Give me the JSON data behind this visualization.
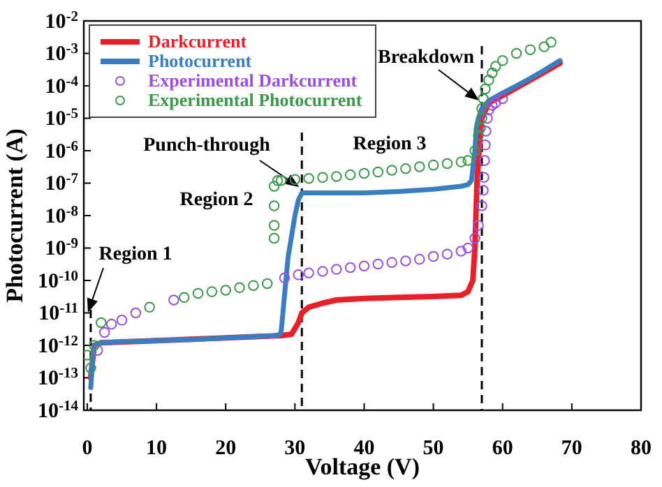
{
  "chart_data": {
    "type": "line",
    "xlabel": "Voltage (V)",
    "ylabel": "Photocurrent (A)",
    "log": "y",
    "xlim": [
      -0.5,
      80
    ],
    "xticks": [
      0,
      10,
      20,
      30,
      40,
      50,
      60,
      70,
      80
    ],
    "ylim": [
      1e-14,
      0.01
    ],
    "yticks": [
      {
        "value": 1e-14,
        "label": "10$^{-14}$"
      },
      {
        "value": 1e-13,
        "label": "10$^{-13}$"
      },
      {
        "value": 1e-12,
        "label": "10$^{-12}$"
      },
      {
        "value": 1e-11,
        "label": "10$^{-11}$"
      },
      {
        "value": 1e-10,
        "label": "10$^{-10}$"
      },
      {
        "value": 1e-09,
        "label": "10$^{-9}$"
      },
      {
        "value": 1e-08,
        "label": "10$^{-8}$"
      },
      {
        "value": 1e-07,
        "label": "10$^{-7}$"
      },
      {
        "value": 1e-06,
        "label": "10$^{-6}$"
      },
      {
        "value": 1e-05,
        "label": "10$^{-5}$"
      },
      {
        "value": 0.0001,
        "label": "10$^{-4}$"
      },
      {
        "value": 0.001,
        "label": "10$^{-3}$"
      },
      {
        "value": 0.01,
        "label": "10$^{-2}$"
      }
    ],
    "legend": "top left",
    "grid": false,
    "series": [
      {
        "name": "Darkcurrent",
        "color": "#e8202a",
        "marker": "none",
        "line_style": "solid",
        "x": [
          0.5,
          1,
          2,
          10,
          20,
          28,
          29.5,
          30.5,
          31,
          32,
          34,
          36,
          40,
          45,
          50,
          54,
          55,
          55.7,
          56,
          56.3,
          56.6,
          57,
          58,
          60,
          64,
          68.3
        ],
        "values": [
          1e-13,
          1e-12,
          1.2e-12,
          1.4e-12,
          1.7e-12,
          2e-12,
          2.2e-12,
          5e-12,
          1e-11,
          1.5e-11,
          2e-11,
          2.5e-11,
          2.8e-11,
          3e-11,
          3.2e-11,
          3.5e-11,
          4.5e-11,
          1e-10,
          1e-09,
          1e-07,
          1e-06,
          1e-05,
          3e-05,
          5e-05,
          0.00015,
          0.0005
        ]
      },
      {
        "name": "Photocurrent",
        "color": "#3a7dc0",
        "marker": "none",
        "line_style": "solid",
        "x": [
          0.5,
          0.6,
          0.8,
          1,
          2,
          5,
          10,
          15,
          20,
          25,
          27.5,
          28,
          29,
          30,
          30.5,
          31,
          35,
          40,
          45,
          50,
          54,
          55,
          55.5,
          56,
          56.2,
          56.5,
          57,
          58,
          60,
          62,
          64,
          66,
          68.3
        ],
        "values": [
          5e-14,
          1e-13,
          5e-13,
          1e-12,
          1.2e-12,
          1.3e-12,
          1.4e-12,
          1.5e-12,
          1.7e-12,
          1.9e-12,
          2e-12,
          2.5e-12,
          5e-10,
          1e-08,
          3e-08,
          5e-08,
          5e-08,
          5e-08,
          5.5e-08,
          6.5e-08,
          8e-08,
          9e-08,
          1.2e-07,
          1e-06,
          5e-06,
          1e-05,
          2e-05,
          3.5e-05,
          6e-05,
          0.0001,
          0.00017,
          0.0003,
          0.0006
        ]
      },
      {
        "name": "Experimental Darkcurrent",
        "type": "scatter",
        "color": "#9b4fe0",
        "marker": "circle",
        "x": [
          1.5,
          2.5,
          3.5,
          5,
          7,
          12.5,
          28.5,
          30.5,
          32,
          34,
          36,
          38,
          40,
          42,
          44,
          46,
          48,
          50,
          52,
          54,
          55,
          56,
          56.5,
          57,
          57.2,
          57.3,
          57.4,
          57.5,
          57.6,
          57.8,
          58,
          58.5,
          59,
          60
        ],
        "values": [
          7e-13,
          2.5e-12,
          4.5e-12,
          6e-12,
          1e-11,
          2.5e-11,
          1.2e-10,
          1.5e-10,
          1.7e-10,
          1.9e-10,
          2.2e-10,
          2.5e-10,
          2.8e-10,
          3.2e-10,
          3.6e-10,
          4e-10,
          4.5e-10,
          5.5e-10,
          6.5e-10,
          8e-10,
          1e-09,
          2e-09,
          5e-09,
          2e-08,
          6e-08,
          1.5e-07,
          5e-07,
          1.5e-06,
          4e-06,
          1e-05,
          1.8e-05,
          2.5e-05,
          3e-05,
          4e-05
        ]
      },
      {
        "name": "Experimental Photocurrent",
        "type": "scatter",
        "color": "#3a9a4a",
        "marker": "circle",
        "x": [
          0,
          0.5,
          1,
          2,
          9,
          14,
          16,
          18,
          20,
          22,
          24,
          26,
          27,
          27,
          27,
          27,
          27.5,
          28,
          30,
          32,
          34,
          36,
          38,
          40,
          42,
          44,
          46,
          48,
          50,
          52,
          54,
          55,
          56,
          56.5,
          56.8,
          57,
          57,
          57.2,
          57.5,
          58,
          58.5,
          59,
          60,
          62,
          64,
          66,
          67
        ],
        "values": [
          5e-13,
          2e-13,
          1e-12,
          5e-12,
          1.5e-11,
          3e-11,
          4e-11,
          4.5e-11,
          5e-11,
          6e-11,
          7e-11,
          8e-11,
          2e-09,
          5e-09,
          2e-08,
          8e-08,
          1.2e-07,
          1.2e-07,
          1.3e-07,
          1.4e-07,
          1.5e-07,
          1.6e-07,
          1.8e-07,
          2e-07,
          2.2e-07,
          2.5e-07,
          2.8e-07,
          3.2e-07,
          3.6e-07,
          4e-07,
          4.5e-07,
          5e-07,
          1e-06,
          3e-06,
          5e-06,
          1e-05,
          2e-05,
          4e-05,
          8e-05,
          0.00015,
          0.00025,
          0.0004,
          0.0006,
          0.001,
          0.0013,
          0.0016,
          0.0022
        ]
      }
    ],
    "ref_lines": [
      {
        "axis": "x",
        "value": 0.5,
        "label": "Region 1",
        "line_style": "dashed",
        "color": "#000000"
      },
      {
        "axis": "x",
        "value": 31,
        "label": "Punch-through",
        "line_style": "dashed",
        "color": "#000000"
      },
      {
        "axis": "x",
        "value": 57,
        "label": "Breakdown",
        "line_style": "dashed",
        "color": "#000000"
      }
    ],
    "annotations": [
      "Region 2",
      "Region 3"
    ]
  }
}
